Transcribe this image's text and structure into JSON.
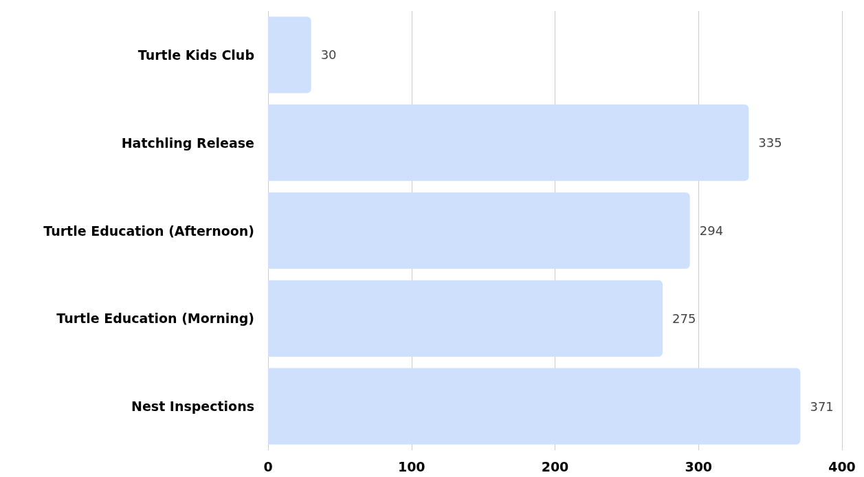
{
  "chart_data": {
    "type": "bar",
    "orientation": "horizontal",
    "categories": [
      "Turtle Kids Club",
      "Hatchling Release",
      "Turtle Education (Afternoon)",
      "Turtle Education (Morning)",
      "Nest Inspections"
    ],
    "values": [
      30,
      335,
      294,
      275,
      371
    ],
    "color": "#cfe0fc",
    "xlim": [
      0,
      400
    ],
    "xticks": [
      0,
      100,
      200,
      300,
      400
    ],
    "grid": "x",
    "data_labels": true
  }
}
